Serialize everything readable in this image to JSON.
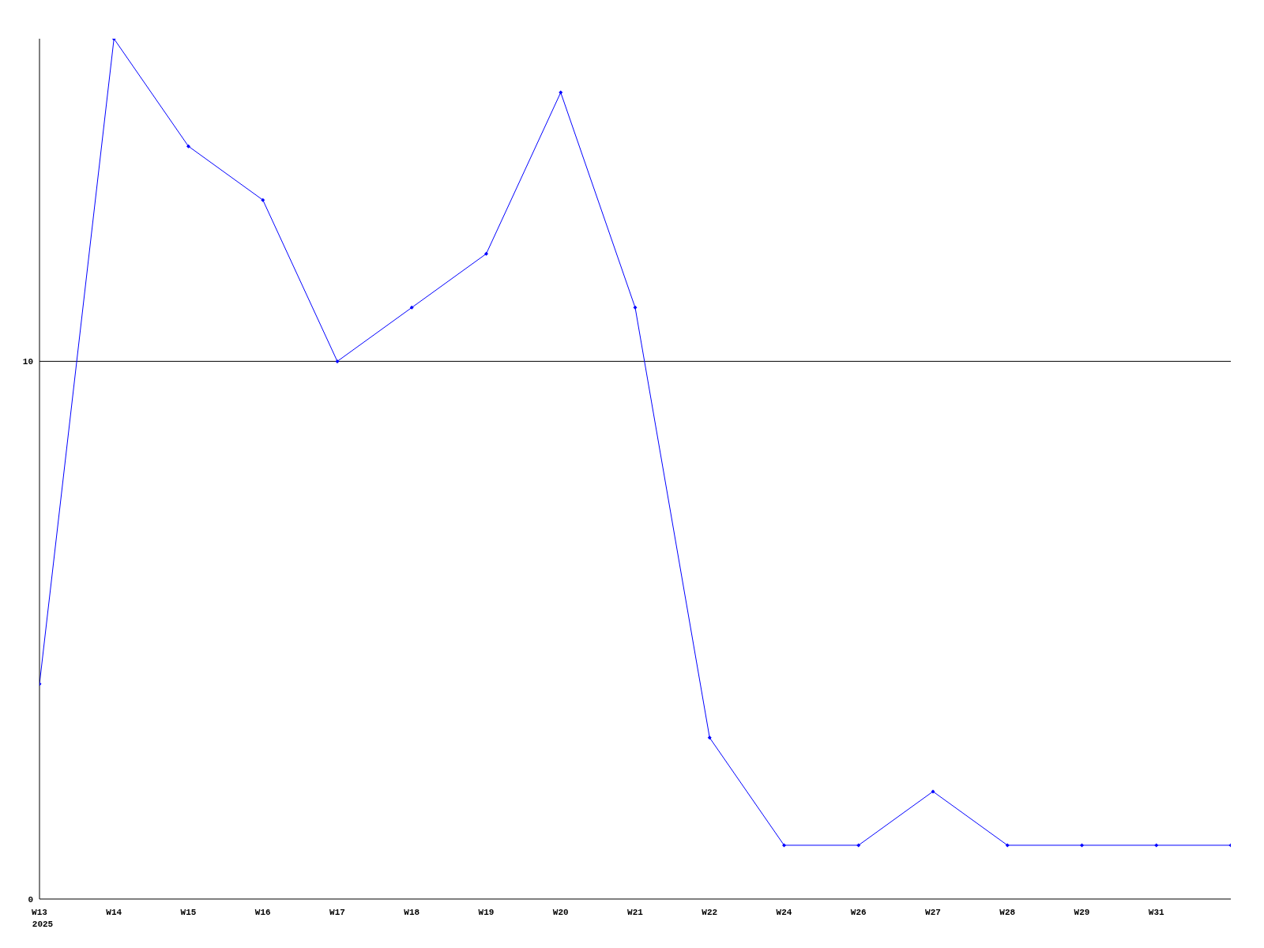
{
  "chart_data": {
    "type": "line",
    "categories": [
      "W13",
      "W14",
      "W15",
      "W16",
      "W17",
      "W18",
      "W19",
      "W20",
      "W21",
      "W22",
      "W24",
      "W26",
      "W27",
      "W28",
      "W29",
      "W31",
      null
    ],
    "series": [
      {
        "color": "#0000ff",
        "values": [
          4,
          16,
          14,
          13,
          10,
          11,
          12,
          15,
          11,
          3,
          1,
          1,
          2,
          1,
          1,
          1,
          1
        ]
      }
    ],
    "ylim": [
      0,
      16
    ],
    "yticks": [
      0,
      10
    ],
    "grid": "y",
    "marker": "diamond",
    "line_style": "solid",
    "annotations": [
      "2025"
    ]
  }
}
